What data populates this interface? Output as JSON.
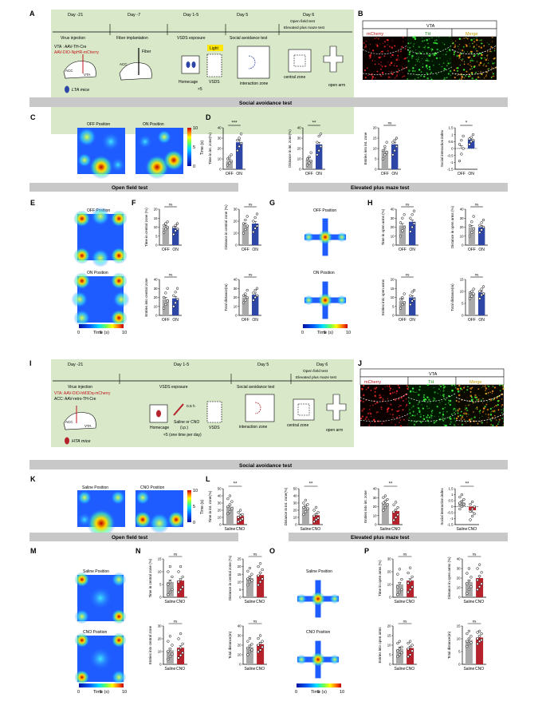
{
  "panels": [
    "A",
    "B",
    "C",
    "D",
    "E",
    "F",
    "G",
    "H",
    "I",
    "J",
    "K",
    "L",
    "M",
    "N",
    "O",
    "P"
  ],
  "top": {
    "timeline_days": [
      "Day -21",
      "Day -7",
      "Day 1-5",
      "Day 5",
      "Day 6"
    ],
    "day6_tests": [
      "Open field test",
      "Elevated plus maze test"
    ],
    "steps": [
      "Virus injection",
      "Fiber implantation",
      "VSDS exposure",
      "Social avoidance test"
    ],
    "virus": [
      "VTA : AAV-TH-Cre",
      "AAV-DIO-NpHR-mCherry"
    ],
    "fiber": "Fiber",
    "regions": {
      "acc": "ACC",
      "vta": "VTA"
    },
    "light": "Light",
    "homecage": "Homecage",
    "vsds": "VSDS",
    "repeat": "×5",
    "interaction_zone": "interaction zone",
    "central_zone": "central zone",
    "open_arm": "open arm",
    "mice": "LTA mice",
    "micro": {
      "title": "VTA",
      "channels": [
        "mCherry",
        "TH",
        "Merge"
      ]
    }
  },
  "bottom": {
    "timeline_days": [
      "Day -21",
      "Day 1-5",
      "Day 5",
      "Day 6"
    ],
    "day6_tests": [
      "Open field test",
      "Elevated plus maze test"
    ],
    "steps": [
      "Virus injection",
      "VSDS exposure",
      "Social avoidance test"
    ],
    "virus": [
      "VTA: AAV-DIO-hM3Dq-mCherry",
      "ACC: AAV-retro-TH-Cre"
    ],
    "regions": {
      "acc": "ACC",
      "vta": "VTA"
    },
    "homecage": "Homecage",
    "injection": [
      "Saline or CNO",
      "(i.p.)"
    ],
    "interval": "0.5 h",
    "vsds": "VSDS",
    "repeat": "×5 (one time per day)",
    "interaction_zone": "interaction zone",
    "central_zone": "central zone",
    "open_arm": "open arm",
    "mice": "HTA mice",
    "micro": {
      "title": "VTA",
      "channels": [
        "mCherry",
        "TH",
        "Merge"
      ]
    }
  },
  "sections": {
    "social": "Social avoidance test",
    "open_field": "Open field test",
    "epm": "Elevated plus maze test"
  },
  "heatmaps": {
    "top_social": [
      "OFF Position",
      "ON Position"
    ],
    "top_of": [
      "OFF Position",
      "ON Position"
    ],
    "top_epm": [
      "OFF Position",
      "ON Position"
    ],
    "bottom_social": [
      "Saline Position",
      "CNO Position"
    ],
    "bottom_of": [
      "Saline Position",
      "CNO Position"
    ],
    "bottom_epm": [
      "Saline Position",
      "CNO Position"
    ],
    "cbar_ticks": [
      "0",
      "5",
      "10"
    ],
    "cbar_label": "Time (s)"
  },
  "colors": {
    "off": "#a9a9a9",
    "on": "#2e47a6",
    "saline": "#a9a9a9",
    "cno": "#b5222b"
  },
  "chart_data": [
    {
      "id": "D1",
      "type": "bar",
      "categories": [
        "OFF",
        "ON"
      ],
      "values": [
        8,
        26
      ],
      "ylabel": "Time in int. zone(%)",
      "yticks": [
        0,
        10,
        20,
        30,
        40
      ],
      "ylim": [
        0,
        40
      ],
      "sig": "***",
      "points": [
        [
          4,
          6,
          8,
          10,
          12,
          14
        ],
        [
          18,
          22,
          25,
          28,
          30,
          34
        ]
      ]
    },
    {
      "id": "D2",
      "type": "bar",
      "categories": [
        "OFF",
        "ON"
      ],
      "values": [
        9,
        24
      ],
      "ylabel": "Distance in int. zone(%)",
      "yticks": [
        0,
        10,
        20,
        30,
        40
      ],
      "ylim": [
        0,
        40
      ],
      "sig": "**",
      "points": [
        [
          4,
          6,
          8,
          10,
          12,
          16
        ],
        [
          14,
          18,
          22,
          26,
          32,
          34
        ]
      ]
    },
    {
      "id": "D3",
      "type": "bar",
      "categories": [
        "OFF",
        "ON"
      ],
      "values": [
        9,
        12
      ],
      "ylabel": "Entries into int. zone",
      "yticks": [
        0,
        5,
        10,
        15,
        20
      ],
      "ylim": [
        0,
        20
      ],
      "sig": "ns",
      "points": [
        [
          5,
          7,
          8,
          9,
          11,
          13
        ],
        [
          7,
          9,
          11,
          13,
          14,
          15
        ]
      ]
    },
    {
      "id": "D4",
      "type": "bar",
      "categories": [
        "OFF",
        "ON"
      ],
      "values": [
        0.05,
        0.65
      ],
      "ylabel": "Social interaction index",
      "yticks": [
        -1.5,
        -1.0,
        -0.5,
        0,
        0.5,
        1.0,
        1.5
      ],
      "ylim": [
        -1.5,
        1.5
      ],
      "sig": "*",
      "baseline": 0,
      "points": [
        [
          -0.9,
          -0.4,
          0,
          0.3,
          0.6,
          0.9
        ],
        [
          0.3,
          0.5,
          0.6,
          0.7,
          0.8,
          1.0
        ]
      ]
    },
    {
      "id": "F1",
      "type": "bar",
      "categories": [
        "OFF",
        "ON"
      ],
      "values": [
        10,
        9.5
      ],
      "ylabel": "Time in central zone (%)",
      "yticks": [
        0,
        5,
        10,
        15,
        20
      ],
      "ylim": [
        0,
        20
      ],
      "sig": "ns",
      "points": [
        [
          7,
          9,
          10,
          11,
          12,
          13
        ],
        [
          6,
          8,
          9,
          10,
          11,
          12
        ]
      ]
    },
    {
      "id": "F2",
      "type": "bar",
      "categories": [
        "OFF",
        "ON"
      ],
      "values": [
        17,
        18
      ],
      "ylabel": "Distance in central zone (%)",
      "yticks": [
        0,
        10,
        20,
        30
      ],
      "ylim": [
        0,
        30
      ],
      "sig": "ns",
      "points": [
        [
          10,
          13,
          16,
          18,
          21,
          24
        ],
        [
          11,
          14,
          16,
          20,
          23,
          26
        ]
      ]
    },
    {
      "id": "F3",
      "type": "bar",
      "categories": [
        "OFF",
        "ON"
      ],
      "values": [
        18,
        19
      ],
      "ylabel": "Entries into central zone",
      "yticks": [
        0,
        10,
        20,
        30,
        40
      ],
      "ylim": [
        0,
        40
      ],
      "sig": "ns",
      "points": [
        [
          8,
          12,
          16,
          20,
          25,
          30
        ],
        [
          10,
          14,
          18,
          22,
          26,
          30
        ]
      ]
    },
    {
      "id": "F4",
      "type": "bar",
      "categories": [
        "OFF",
        "ON"
      ],
      "values": [
        20,
        23
      ],
      "ylabel": "Total distance(m)",
      "yticks": [
        0,
        10,
        20,
        30,
        40
      ],
      "ylim": [
        0,
        40
      ],
      "sig": "ns",
      "points": [
        [
          14,
          17,
          20,
          22,
          24,
          28
        ],
        [
          17,
          20,
          22,
          25,
          28,
          30
        ]
      ]
    },
    {
      "id": "H1",
      "type": "bar",
      "categories": [
        "OFF",
        "ON"
      ],
      "values": [
        22,
        26
      ],
      "ylabel": "Time in open arms (%)",
      "yticks": [
        0,
        10,
        20,
        30,
        40
      ],
      "ylim": [
        0,
        40
      ],
      "sig": "ns",
      "points": [
        [
          10,
          16,
          20,
          25,
          30,
          34
        ],
        [
          15,
          20,
          24,
          30,
          34,
          38
        ]
      ]
    },
    {
      "id": "H2",
      "type": "bar",
      "categories": [
        "OFF",
        "ON"
      ],
      "values": [
        20,
        20
      ],
      "ylabel": "Distance in open arms (%)",
      "yticks": [
        0,
        10,
        20,
        30,
        40
      ],
      "ylim": [
        0,
        40
      ],
      "sig": "ns",
      "points": [
        [
          10,
          14,
          18,
          22,
          26,
          32
        ],
        [
          14,
          17,
          20,
          22,
          25,
          28
        ]
      ]
    },
    {
      "id": "H3",
      "type": "bar",
      "categories": [
        "OFF",
        "ON"
      ],
      "values": [
        8,
        10
      ],
      "ylabel": "Entries into open arms",
      "yticks": [
        0,
        5,
        10,
        15,
        20
      ],
      "ylim": [
        0,
        20
      ],
      "sig": "ns",
      "points": [
        [
          4,
          6,
          7,
          9,
          10,
          12
        ],
        [
          6,
          8,
          9,
          11,
          13,
          14
        ]
      ]
    },
    {
      "id": "H4",
      "type": "bar",
      "categories": [
        "OFF",
        "ON"
      ],
      "values": [
        9,
        9.5
      ],
      "ylabel": "Total distance(m)",
      "yticks": [
        0,
        5,
        10,
        15
      ],
      "ylim": [
        0,
        15
      ],
      "sig": "ns",
      "points": [
        [
          7,
          8,
          9,
          9.5,
          10,
          11
        ],
        [
          7,
          8.5,
          9,
          10,
          11,
          12
        ]
      ]
    },
    {
      "id": "L1",
      "type": "bar",
      "categories": [
        "Saline",
        "CNO"
      ],
      "values": [
        25,
        12
      ],
      "ylabel": "Time in int. zone(%)",
      "yticks": [
        0,
        10,
        20,
        30,
        40,
        50
      ],
      "ylim": [
        0,
        50
      ],
      "sig": "**",
      "points": [
        [
          15,
          18,
          22,
          25,
          28,
          32,
          36,
          40
        ],
        [
          4,
          6,
          8,
          10,
          12,
          14,
          17,
          20
        ]
      ]
    },
    {
      "id": "L2",
      "type": "bar",
      "categories": [
        "Saline",
        "CNO"
      ],
      "values": [
        24,
        13
      ],
      "ylabel": "Distance in int. zone(%)",
      "yticks": [
        0,
        10,
        20,
        30,
        40,
        50
      ],
      "ylim": [
        0,
        50
      ],
      "sig": "**",
      "points": [
        [
          14,
          18,
          22,
          24,
          26,
          28,
          30,
          34
        ],
        [
          4,
          7,
          9,
          12,
          14,
          17,
          20,
          24
        ]
      ]
    },
    {
      "id": "L3",
      "type": "bar",
      "categories": [
        "Saline",
        "CNO"
      ],
      "values": [
        24,
        15
      ],
      "ylabel": "Entries into int. zone",
      "yticks": [
        0,
        10,
        20,
        30,
        40
      ],
      "ylim": [
        0,
        40
      ],
      "sig": "**",
      "points": [
        [
          16,
          19,
          22,
          24,
          26,
          28,
          30,
          32
        ],
        [
          5,
          8,
          11,
          14,
          16,
          19,
          22,
          25
        ]
      ]
    },
    {
      "id": "L4",
      "type": "bar",
      "categories": [
        "Saline",
        "CNO"
      ],
      "values": [
        0.35,
        -0.3
      ],
      "ylabel": "Social interaction index",
      "yticks": [
        -1.5,
        -1.0,
        -0.5,
        0,
        0.5,
        1.0,
        1.5
      ],
      "ylim": [
        -1.5,
        1.5
      ],
      "sig": "**",
      "baseline": 0,
      "points": [
        [
          -0.2,
          0,
          0.2,
          0.3,
          0.4,
          0.6,
          0.8,
          1.0
        ],
        [
          -1.1,
          -0.8,
          -0.6,
          -0.4,
          -0.2,
          0,
          0.2,
          0.4
        ]
      ]
    },
    {
      "id": "N1",
      "type": "bar",
      "categories": [
        "Saline",
        "CNO"
      ],
      "values": [
        6,
        6.5
      ],
      "ylabel": "Time in central zone (%)",
      "yticks": [
        0,
        5,
        10,
        15
      ],
      "ylim": [
        0,
        15
      ],
      "sig": "ns",
      "points": [
        [
          1,
          2,
          3,
          5,
          6,
          8,
          10,
          12
        ],
        [
          2,
          3,
          4,
          6,
          7,
          8,
          10,
          12
        ]
      ]
    },
    {
      "id": "N2",
      "type": "bar",
      "categories": [
        "Saline",
        "CNO"
      ],
      "values": [
        12.5,
        14.5
      ],
      "ylabel": "Distance in central zone (%)",
      "yticks": [
        0,
        5,
        10,
        15,
        20,
        25
      ],
      "ylim": [
        0,
        25
      ],
      "sig": "ns",
      "points": [
        [
          8,
          10,
          11,
          12,
          13,
          15,
          17,
          19
        ],
        [
          8,
          10,
          12,
          14,
          16,
          18,
          20,
          22
        ]
      ]
    },
    {
      "id": "N3",
      "type": "bar",
      "categories": [
        "Saline",
        "CNO"
      ],
      "values": [
        11,
        13
      ],
      "ylabel": "Entries into central zone",
      "yticks": [
        0,
        10,
        20,
        30
      ],
      "ylim": [
        0,
        30
      ],
      "sig": "ns",
      "points": [
        [
          4,
          6,
          8,
          10,
          12,
          15,
          18,
          22
        ],
        [
          5,
          7,
          9,
          11,
          13,
          16,
          20,
          24
        ]
      ]
    },
    {
      "id": "N4",
      "type": "bar",
      "categories": [
        "Saline",
        "CNO"
      ],
      "values": [
        18,
        21
      ],
      "ylabel": "Total distance(m)",
      "yticks": [
        0,
        10,
        20,
        30,
        40
      ],
      "ylim": [
        0,
        40
      ],
      "sig": "ns",
      "points": [
        [
          10,
          13,
          15,
          17,
          19,
          21,
          24,
          27
        ],
        [
          13,
          15,
          18,
          20,
          22,
          24,
          27,
          30
        ]
      ]
    },
    {
      "id": "P1",
      "type": "bar",
      "categories": [
        "Saline",
        "CNO"
      ],
      "values": [
        10,
        13
      ],
      "ylabel": "Time in open arms (%)",
      "yticks": [
        0,
        10,
        20,
        30
      ],
      "ylim": [
        0,
        30
      ],
      "sig": "ns",
      "points": [
        [
          2,
          4,
          6,
          8,
          11,
          14,
          18,
          22
        ],
        [
          4,
          6,
          8,
          11,
          13,
          16,
          19,
          23
        ]
      ]
    },
    {
      "id": "P2",
      "type": "bar",
      "categories": [
        "Saline",
        "CNO"
      ],
      "values": [
        16,
        20
      ],
      "ylabel": "Distance in open arms (%)",
      "yticks": [
        0,
        10,
        20,
        30,
        40
      ],
      "ylim": [
        0,
        40
      ],
      "sig": "ns",
      "points": [
        [
          4,
          8,
          11,
          14,
          17,
          21,
          25,
          30
        ],
        [
          8,
          11,
          14,
          18,
          22,
          26,
          30,
          34
        ]
      ]
    },
    {
      "id": "P3",
      "type": "bar",
      "categories": [
        "Saline",
        "CNO"
      ],
      "values": [
        8,
        8.5
      ],
      "ylabel": "Entries into open arms",
      "yticks": [
        0,
        5,
        10,
        15,
        20
      ],
      "ylim": [
        0,
        20
      ],
      "sig": "ns",
      "points": [
        [
          4,
          5,
          6,
          7,
          8,
          9,
          11,
          12
        ],
        [
          4,
          5,
          7,
          8,
          9,
          10,
          11,
          12
        ]
      ]
    },
    {
      "id": "P4",
      "type": "bar",
      "categories": [
        "Saline",
        "CNO"
      ],
      "values": [
        9.5,
        10.5
      ],
      "ylabel": "Total distance(m)",
      "yticks": [
        0,
        5,
        10,
        15
      ],
      "ylim": [
        0,
        15
      ],
      "sig": "ns",
      "points": [
        [
          7,
          8,
          8.5,
          9,
          10,
          11,
          12,
          13
        ],
        [
          8,
          9,
          9.5,
          10,
          11,
          12,
          12.5,
          13
        ]
      ]
    }
  ]
}
